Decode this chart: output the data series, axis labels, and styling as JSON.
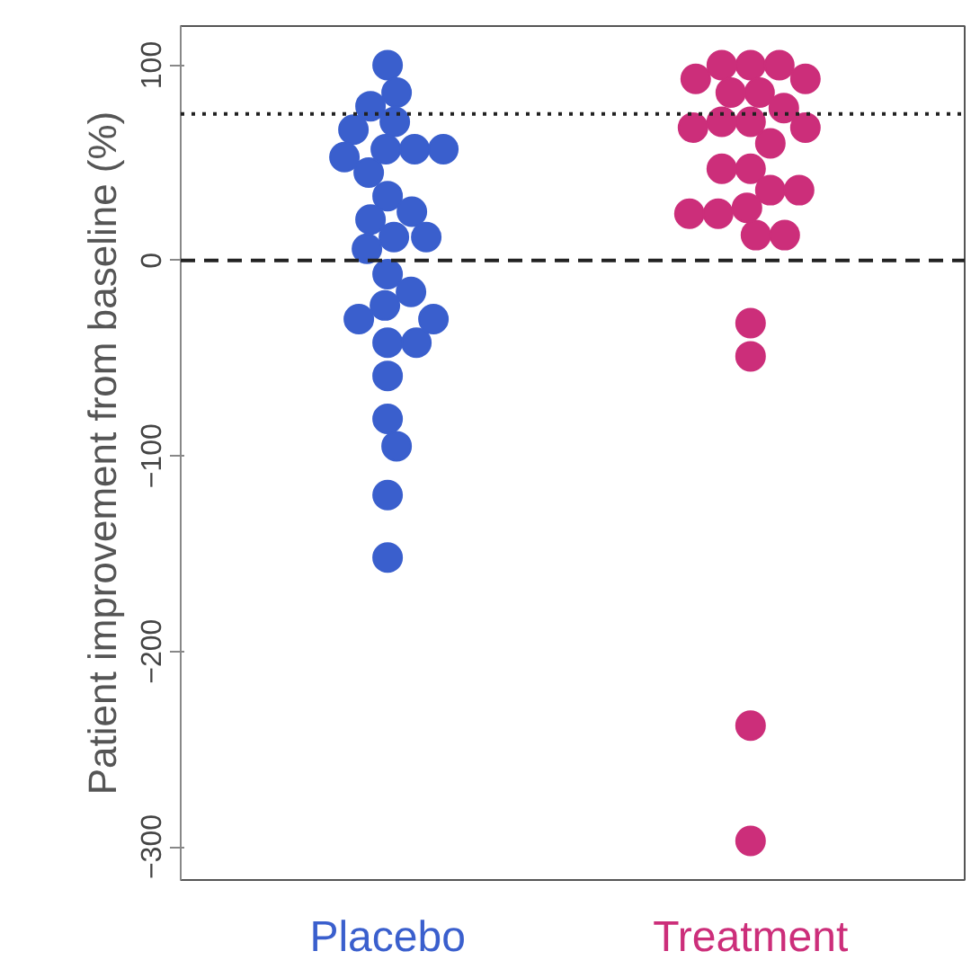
{
  "chart_data": {
    "type": "scatter",
    "categories": [
      "Placebo",
      "Treatment"
    ],
    "ylabel": "Patient improvement from baseline (%)",
    "ylim": [
      -317,
      120
    ],
    "yticks": [
      -300,
      -200,
      -100,
      0,
      100
    ],
    "grid": false,
    "marker": "circle",
    "series": [
      {
        "color": "#3a5fcd",
        "x": [
          "Placebo",
          "Placebo",
          "Placebo",
          "Placebo",
          "Placebo",
          "Placebo",
          "Placebo",
          "Placebo",
          "Placebo",
          "Placebo",
          "Placebo",
          "Placebo",
          "Placebo",
          "Placebo",
          "Placebo",
          "Placebo",
          "Placebo",
          "Placebo",
          "Placebo",
          "Placebo",
          "Placebo",
          "Placebo",
          "Placebo",
          "Placebo",
          "Placebo",
          "Placebo",
          "Placebo",
          "Placebo"
        ],
        "values": [
          100,
          86,
          79,
          71,
          67,
          57,
          57,
          57,
          53,
          45,
          33,
          25,
          21,
          12,
          12,
          6,
          -7,
          -16,
          -23,
          -30,
          -42,
          -42,
          -59,
          -81,
          -95,
          -120,
          -152,
          -30
        ]
      },
      {
        "color": "#cc2e7a",
        "x": [
          "Treatment",
          "Treatment",
          "Treatment",
          "Treatment",
          "Treatment",
          "Treatment",
          "Treatment",
          "Treatment",
          "Treatment",
          "Treatment",
          "Treatment",
          "Treatment",
          "Treatment",
          "Treatment",
          "Treatment",
          "Treatment",
          "Treatment",
          "Treatment",
          "Treatment",
          "Treatment",
          "Treatment",
          "Treatment",
          "Treatment",
          "Treatment",
          "Treatment",
          "Treatment"
        ],
        "values": [
          100,
          100,
          100,
          93,
          93,
          86,
          86,
          78,
          71,
          71,
          68,
          68,
          60,
          47,
          47,
          36,
          36,
          27,
          24,
          24,
          13,
          13,
          -32,
          -49,
          -238,
          -297
        ]
      }
    ],
    "ref_lines": [
      {
        "axis": "y",
        "value": 75,
        "line_style": "dotted"
      },
      {
        "axis": "y",
        "value": 0,
        "line_style": "dashed"
      }
    ]
  }
}
